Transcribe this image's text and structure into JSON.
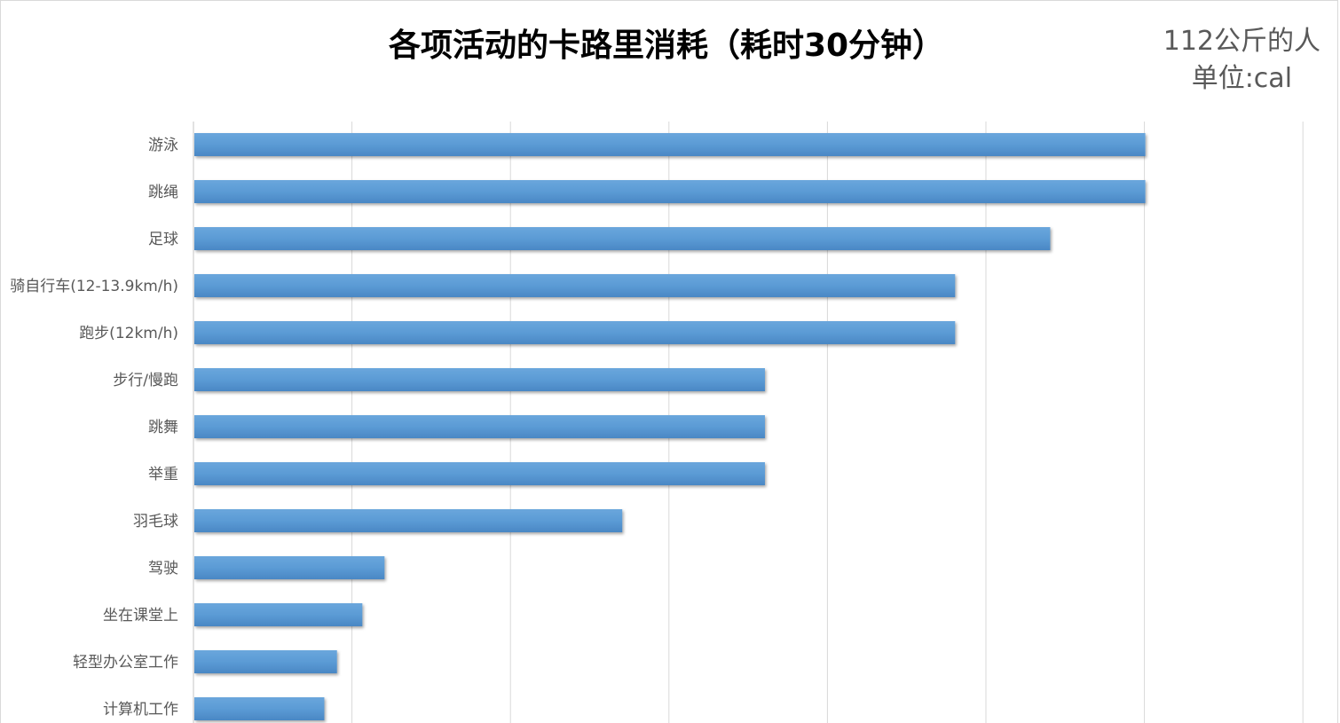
{
  "chart_data": {
    "type": "bar",
    "orientation": "horizontal",
    "title": "各项活动的卡路里消耗（耗时30分钟）",
    "subtitle": "112公斤的人",
    "unit_label": "单位:cal",
    "categories": [
      "游泳",
      "跳绳",
      "足球",
      "骑自行车(12-13.9km/h)",
      "跑步(12km/h)",
      "步行/慢跑",
      "跳舞",
      "举重",
      "羽毛球",
      "驾驶",
      "坐在课堂上",
      "轻型办公室工作",
      "计算机工作"
    ],
    "values": [
      600,
      600,
      540,
      480,
      480,
      360,
      360,
      360,
      270,
      120,
      106,
      90,
      82
    ],
    "xlim": [
      0,
      700
    ],
    "x_tick_step": 100,
    "x_tick_labels_visible": false,
    "grid": "vertical",
    "bar_color": "#5b9bd5",
    "grid_color": "#d9d9d9"
  }
}
